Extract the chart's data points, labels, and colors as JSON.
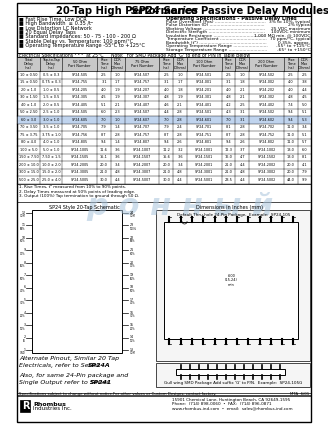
{
  "title_italic": "SP24 Series",
  "title_normal": " 20-Tap High Performance Passive Delay Modules",
  "features": [
    "Fast Rise Time, Low DCR",
    "High Bandwidth  ≥ 0.35 /tᴿ",
    "Low Distortion LC Network",
    "20 Equal Delay Taps",
    "Standard Impedances: 50 - 75 - 100 - 200 Ω",
    "Stable Delay vs. Temperature: 100 ppm/°C",
    "Operating Temperature Range -55°C to +125°C"
  ],
  "op_specs_title": "Operating Specifications - Passive Delay Lines",
  "op_specs": [
    [
      "Pulse Overshoot (Pos) .....................................",
      "3% to 10%, typical"
    ],
    [
      "Pulse Distortion (D) ........................................",
      "2% typical"
    ],
    [
      "Working Voltage .............................................",
      "25 VDC maximum"
    ],
    [
      "Dielectric Strength .........................................",
      "100VDC minimum"
    ],
    [
      "Insulation Resistance .....................................",
      "1,000 MΩ min. @ 100VDC"
    ],
    [
      "Temperature Coefficient ..................................",
      "70 ppm/°C, typical"
    ],
    [
      "Bandwidth (tᴿ) .................................................",
      "0.35/t, approx."
    ],
    [
      "Operating Temperature Range .........................",
      "-55° to +125°C"
    ],
    [
      "Storage Temperature Range ............................",
      "-65° to +150°C"
    ]
  ],
  "elec_note": "Electrical Specifications ¹ ² ³  at 25°C     Note:  For SMD Package Add 'G' to end of P/N in Table Below",
  "col_headers": [
    "Total\nDelay\n(ns)",
    "Tap-to-Tap\nDelay\n(ns)",
    "50 Ohm\nPart Number",
    "Rise\nTime\n(ns)",
    "DCR\nMax\n(Ohms)",
    "75 Ohm\nPart Number",
    "Rise\nTime\n(ns)",
    "DCR\nMax\n(Ohms)",
    "100 Ohm\nPart Number",
    "Rise\nTime\n(ns)",
    "DCR\nMax\n(Ohms)",
    "200 Ohm\nPart Number",
    "Rise\nTime\n(ns)",
    "DCR\nMax\n(Ohms)"
  ],
  "table_data": [
    [
      "10 ± 0.50",
      "0.5 ± 0.3",
      "SP24-505",
      "2.5",
      "1.0",
      "SP24-507",
      "2.5",
      "1.0",
      "SP24-501",
      "2.5",
      "1.0",
      "SP24-502",
      "2.5",
      "2.5"
    ],
    [
      "15 ± 0.50",
      "0.75 ± 0.3",
      "SP24-755",
      "3.1",
      "1.7",
      "SP24-757",
      "3.1",
      "1.7",
      "SP24-001",
      "3.1",
      "1.8",
      "SP24-002",
      "4.0",
      "3.8"
    ],
    [
      "20 ± 1.0",
      "1.0 ± 0.5",
      "SP24-205",
      "4.0",
      "1.9",
      "SP24-207",
      "4.0",
      "1.8",
      "SP24-201",
      "4.0",
      "2.1",
      "SP24-202",
      "4.0",
      "4.4"
    ],
    [
      "30 ± 1.50",
      "1.5 ± 0.5",
      "SP24-305",
      "4.5",
      "1.9",
      "SP24-307",
      "4.8",
      "1.9",
      "SP24-301",
      "4.8",
      "2.1",
      "SP24-302",
      "4.8",
      "4.5"
    ],
    [
      "40 ± 1.0",
      "2.0 ± 0.5",
      "SP24-405",
      "5.1",
      "2.1",
      "SP24-407",
      "4.6",
      "2.1",
      "SP24-401",
      "4.2",
      "2.5",
      "SP24-402",
      "7.4",
      "5.0"
    ],
    [
      "50 ± 2.50",
      "2.5 ± 1.0",
      "SP24-505",
      "6.0",
      "2.3",
      "SP24-507",
      "4.4",
      "2.8",
      "SP24-501",
      "4.3",
      "3.1",
      "SP24-502",
      "9.4",
      "5.1"
    ],
    [
      "60 ± 3.0",
      "3.0 ± 1.0",
      "SP24-605",
      "7.0",
      "1.0",
      "SP24-607",
      "7.0",
      "2.8",
      "SP24-601",
      "7.0",
      "3.1",
      "SP24-602",
      "9.4",
      "5.3"
    ],
    [
      "70 ± 3.50",
      "3.5 ± 1.0",
      "SP24-705",
      "7.9",
      "1.4",
      "SP24-707",
      "7.9",
      "2.4",
      "SP24-701",
      "8.1",
      "2.8",
      "SP24-702",
      "11.0",
      "3.4"
    ],
    [
      "75 ± 3.75",
      "3.75 ± 1.0",
      "SP24-756",
      "8.7",
      "2.8",
      "SP24-757",
      "8.7",
      "2.8",
      "SP24-751",
      "8.7",
      "2.8",
      "SP24-752",
      "11.0",
      "5.1"
    ],
    [
      "80 ± 4.0",
      "4.0 ± 1.0",
      "SP24-805",
      "9.4",
      "1.4",
      "SP24-807",
      "9.4",
      "2.6",
      "SP24-801",
      "9.4",
      "2.6",
      "SP24-802",
      "11.0",
      "5.7"
    ],
    [
      "100 ± 5.0",
      "5.0 ± 1.0",
      "SP24-1005",
      "11.6",
      "3.6",
      "SP24-1007",
      "11.2",
      "3.2",
      "SP24-1001",
      "12.3",
      "3.7",
      "SP24-1002",
      "13.0",
      "6.0"
    ],
    [
      "150 ± 7.50",
      "7.50 ± 1.5",
      "SP24-1505",
      "15.1",
      "3.6",
      "SP24-1507",
      "15.6",
      "3.6",
      "SP24-1501",
      "16.0",
      "4.7",
      "SP24-1502",
      "13.0",
      "8.1"
    ],
    [
      "200 ± 10.0",
      "10.0 ± 2.0",
      "SP24-2005",
      "20.0",
      "3.4",
      "SP24-2007",
      "20.0",
      "3.4",
      "SP24-2001",
      "21.0",
      "4.4",
      "SP24-2002",
      "20.0",
      "4.1"
    ],
    [
      "300 ± 15.0",
      "15.0 ± 2.0",
      "SP24-3005",
      "21.0",
      "4.8",
      "SP24-3007",
      "21.0",
      "4.8",
      "SP24-3001",
      "21.0",
      "4.8",
      "SP24-3002",
      "20.0",
      "7.9"
    ],
    [
      "500 ± 25.0",
      "25.0 ± 4.0",
      "SP24-5005",
      "30.0",
      "4.4",
      "SP24-5007",
      "30.0",
      "4.4",
      "SP24-5001",
      "23.5",
      "4.4",
      "SP24-5002",
      "44.0",
      "9.9"
    ]
  ],
  "highlight_row": 6,
  "footnotes": [
    "1. Rise Times, tᴿ measured from 10% to 90% points.",
    "2. Delay Times measured at 50% points of leading edge.",
    "3. Output (100%) Tap termination to ground through 50 Ω."
  ],
  "schematic_label": "SP24 Style 20-Tap Schematic",
  "dim_label": "Dimensions in Inches (mm)",
  "package_label": "Default Thru-hole 24-Pin Package,  Example:  SP24-105",
  "alt_pinout_line1": "Alternate Pinout, Similar 20 Tap",
  "alt_pinout_line2": "Electricals, refer to Series ",
  "alt_pinout_bold": "SP24A",
  "also_line1": "Also, for same 24-Pin package and",
  "also_line2": "Single Output refer to Series ",
  "also_bold": "SP241",
  "spec_note": "Specifications subject to change without notice.",
  "contact_note": "For other values or Custom Designs, contact factory.",
  "rev_note": "MTA  6/01",
  "company_name": "Rhombus",
  "company_name2": "Industries Inc.",
  "address": "15901 Chemical Lane, Huntington Beach, CA 92649-1595",
  "phone": "Phone:  (714) 898-0060  •  FAX:  (714) 896-0871",
  "website": "www.rhombus-ind.com  •  email:  sales@rhombus-ind.com",
  "gull_note": "Gull wing SMD Package Add suffix 'G' to P/N.  Example:  SP24-105G",
  "watermark": "р о н н ы й",
  "bg_color": "#ffffff"
}
